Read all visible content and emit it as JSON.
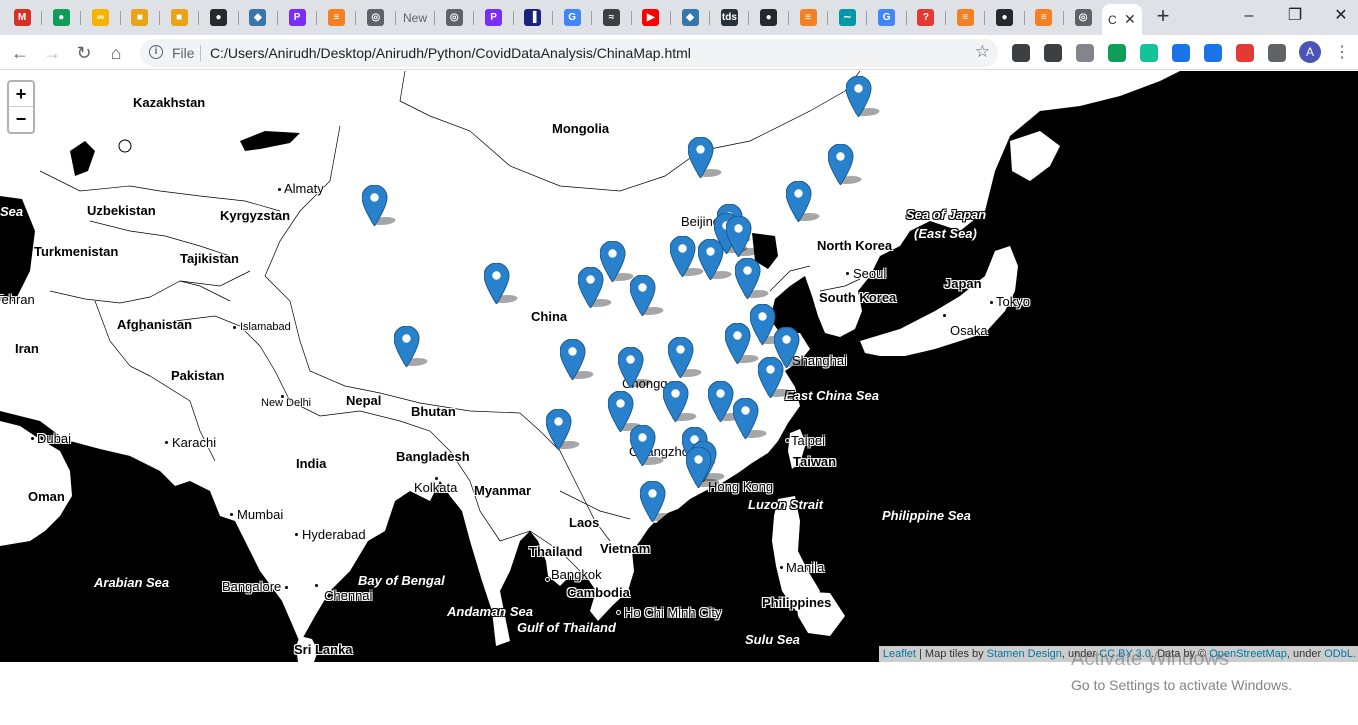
{
  "browser": {
    "tabs": [
      {
        "icon": "gmail-icon",
        "color": "#d93025",
        "glyph": "M"
      },
      {
        "icon": "hangouts-icon",
        "color": "#0f9d58",
        "glyph": "●"
      },
      {
        "icon": "infinity-icon",
        "color": "#f4b400",
        "glyph": "∞"
      },
      {
        "icon": "extension-icon",
        "color": "#e8a317",
        "glyph": "■"
      },
      {
        "icon": "extension-icon",
        "color": "#e8a317",
        "glyph": "■"
      },
      {
        "icon": "github-icon",
        "color": "#24292e",
        "glyph": "●"
      },
      {
        "icon": "python-icon",
        "color": "#3776ab",
        "glyph": "◆"
      },
      {
        "icon": "p-icon",
        "color": "#7b2cf5",
        "glyph": "P"
      },
      {
        "icon": "stackoverflow-icon",
        "color": "#f48024",
        "glyph": "≡"
      },
      {
        "icon": "globe-icon",
        "color": "#5f6368",
        "glyph": "◎"
      },
      {
        "icon": "new-tab-icon",
        "color": "#ffffff",
        "glyph": "New",
        "text": true
      },
      {
        "icon": "globe-icon",
        "color": "#5f6368",
        "glyph": "◎"
      },
      {
        "icon": "p-icon",
        "color": "#7b2cf5",
        "glyph": "P"
      },
      {
        "icon": "chart-icon",
        "color": "#1a237e",
        "glyph": "▐"
      },
      {
        "icon": "google-icon",
        "color": "#4285f4",
        "glyph": "G"
      },
      {
        "icon": "wave-icon",
        "color": "#3c4043",
        "glyph": "≈"
      },
      {
        "icon": "youtube-icon",
        "color": "#ff0000",
        "glyph": "▶"
      },
      {
        "icon": "python-icon",
        "color": "#3776ab",
        "glyph": "◆"
      },
      {
        "icon": "tds-icon",
        "color": "#263238",
        "glyph": "tds"
      },
      {
        "icon": "github-icon",
        "color": "#24292e",
        "glyph": "●"
      },
      {
        "icon": "stackoverflow-icon",
        "color": "#f48024",
        "glyph": "≡"
      },
      {
        "icon": "fish-icon",
        "color": "#0097a7",
        "glyph": "∼"
      },
      {
        "icon": "google-icon",
        "color": "#4285f4",
        "glyph": "G"
      },
      {
        "icon": "question-icon",
        "color": "#e53935",
        "glyph": "?"
      },
      {
        "icon": "stackoverflow-icon",
        "color": "#f48024",
        "glyph": "≡"
      },
      {
        "icon": "github-icon",
        "color": "#24292e",
        "glyph": "●"
      },
      {
        "icon": "stackoverflow-icon",
        "color": "#f48024",
        "glyph": "≡"
      },
      {
        "icon": "globe-icon",
        "color": "#5f6368",
        "glyph": "◎"
      }
    ],
    "active_tab_title": "C",
    "url_scheme": "File",
    "url": "C:/Users/Anirudh/Desktop/Anirudh/Python/CovidDataAnalysis/ChinaMap.html",
    "extensions": [
      {
        "icon": "speedometer-icon",
        "color": "#3c4043"
      },
      {
        "icon": "shield-icon",
        "color": "#3c4043"
      },
      {
        "icon": "cloud-icon",
        "color": "#80868b"
      },
      {
        "icon": "leaf-icon",
        "color": "#0f9d58"
      },
      {
        "icon": "grammarly-icon",
        "color": "#15c39a"
      },
      {
        "icon": "download-icon",
        "color": "#1a73e8"
      },
      {
        "icon": "download-icon",
        "color": "#1a73e8"
      },
      {
        "icon": "screenshot-icon",
        "color": "#e53935"
      },
      {
        "icon": "puzzle-icon",
        "color": "#5f6368"
      }
    ],
    "avatar_initial": "A"
  },
  "map": {
    "zoom_in": "+",
    "zoom_out": "−",
    "labels": {
      "kazakhstan": "Kazakhstan",
      "mongolia": "Mongolia",
      "almaty": "Almaty",
      "uzbekistan": "Uzbekistan",
      "kyrgyzstan": "Kyrgyzstan",
      "sea_left": "Sea",
      "turkmenistan": "Turkmenistan",
      "tajikistan": "Tajikistan",
      "tehran": "Tehran",
      "afghanistan": "Afghanistan",
      "islamabad": "Islamabad",
      "iran": "Iran",
      "pakistan": "Pakistan",
      "new_delhi": "New Delhi",
      "nepal": "Nepal",
      "bhutan": "Bhutan",
      "dubai": "Dubai",
      "karachi": "Karachi",
      "india": "India",
      "bangladesh": "Bangladesh",
      "kolkata": "Kolkata",
      "oman": "Oman",
      "mumbai": "Mumbai",
      "hyderabad": "Hyderabad",
      "arabian_sea": "Arabian Sea",
      "bangalore": "Bangalore",
      "chennai": "Chennai",
      "bay_of_bengal": "Bay of Bengal",
      "sri_lanka": "Sri Lanka",
      "myanmar": "Myanmar",
      "laos": "Laos",
      "thailand": "Thailand",
      "vietnam": "Vietnam",
      "bangkok": "Bangkok",
      "cambodia": "Cambodia",
      "ho_chi_minh": "Ho Chi Minh City",
      "andaman_sea": "Andaman Sea",
      "gulf_of_thailand": "Gulf of Thailand",
      "china": "China",
      "beijing": "Beijing",
      "chongqing": "Chongq",
      "guangzhou": "Guangzho",
      "hong_kong": "Hong Kong",
      "north_korea": "North Korea",
      "seoul": "Seoul",
      "south_korea": "South Korea",
      "japan": "Japan",
      "tokyo": "Tokyo",
      "osaka": "Osaka",
      "sea_of_japan_1": "Sea of Japan",
      "sea_of_japan_2": "(East Sea)",
      "shanghai": "Shanghai",
      "east_china_sea": "East China Sea",
      "taipei": "Taipei",
      "taiwan": "Taiwan",
      "luzon_strait": "Luzon Strait",
      "philippine_sea": "Philippine Sea",
      "manila": "Manila",
      "philippines": "Philippines",
      "sulu_sea": "Sulu Sea"
    },
    "attribution": {
      "leaflet": "Leaflet",
      "sep1": " | Map tiles by ",
      "stamen": "Stamen Design",
      "sep2": ", under ",
      "ccby": "CC BY 3.0",
      "sep3": ". Data by © ",
      "osm": "OpenStreetMap",
      "sep4": ", under ",
      "odbl": "ODbL."
    },
    "marker_color": "#2a81cb"
  },
  "os": {
    "activate_title": "Activate Windows",
    "activate_hint": "Go to Settings to activate Windows."
  }
}
